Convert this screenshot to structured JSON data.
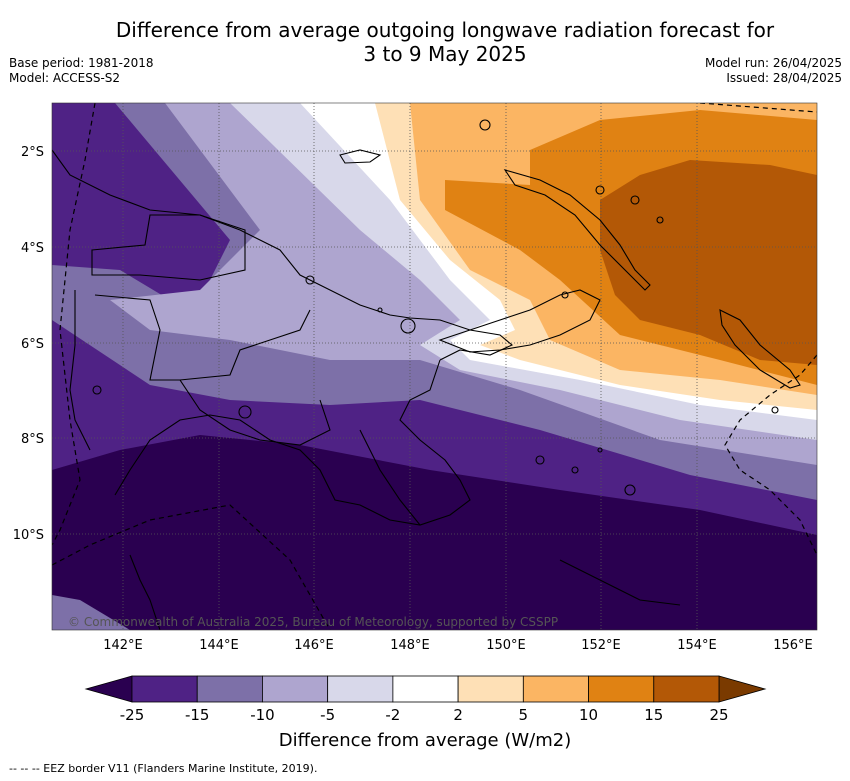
{
  "title_line1": "Difference from average outgoing longwave radiation forecast for",
  "title_line2": "3 to 9 May 2025",
  "base_period": "Base period: 1981-2018",
  "model": "Model: ACCESS-S2",
  "model_run": "Model run: 26/04/2025",
  "issued": "Issued: 28/04/2025",
  "copyright": "© Commonwealth of Australia 2025, Bureau of Meteorology, supported by CSSPP",
  "lat_labels": [
    "2°S",
    "4°S",
    "6°S",
    "8°S",
    "10°S"
  ],
  "lon_labels": [
    "142°E",
    "144°E",
    "146°E",
    "148°E",
    "150°E",
    "152°E",
    "154°E",
    "156°E"
  ],
  "colorbar": {
    "title": "Difference from average (W/m2)",
    "ticks": [
      "-25",
      "-15",
      "-10",
      "-5",
      "-2",
      "2",
      "5",
      "10",
      "15",
      "25"
    ],
    "colors": [
      "#2a0050",
      "#4f2285",
      "#7d70a8",
      "#aea5cf",
      "#d8d8ea",
      "#ffffff",
      "#fee0b6",
      "#fbb563",
      "#e08213",
      "#b35806",
      "#7a3a00"
    ]
  },
  "footer": "-- -- -- EEZ border V11 (Flanders Marine Institute, 2019)."
}
